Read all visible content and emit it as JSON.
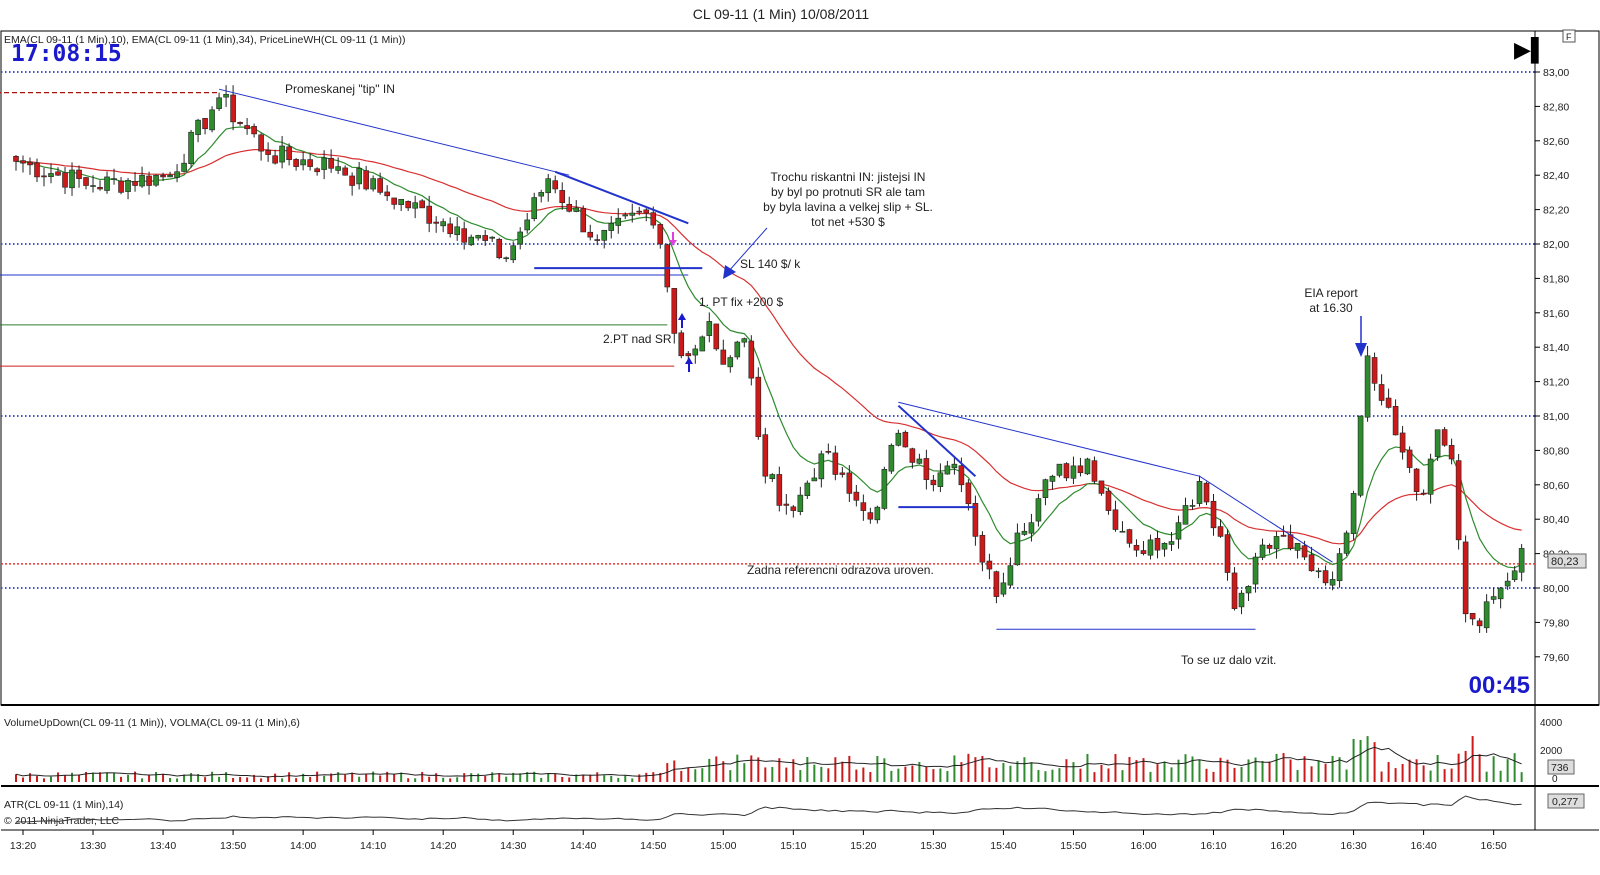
{
  "header": {
    "title": "CL 09-11 (1 Min)  10/08/2011",
    "indicator_label": "EMA(CL 09-11 (1 Min),10), EMA(CL 09-11 (1 Min),34), PriceLineWH(CL 09-11 (1 Min))",
    "clock": "17:08:15",
    "countdown": "00:45",
    "play_glyph": "▶▌",
    "f_button": "F"
  },
  "volume_panel": {
    "label": "VolumeUpDown(CL 09-11 (1 Min)), VOLMA(CL 09-11 (1 Min),6)",
    "current_value": "736"
  },
  "atr_panel": {
    "label": "ATR(CL 09-11 (1 Min),14)",
    "current_value": "0,277"
  },
  "copyright": "© 2011 NinjaTrader, LLC",
  "price_marker": "80,23",
  "colors": {
    "up_candle": "#2e8b2e",
    "down_candle": "#cc1a1a",
    "ema_fast": "#2e8b2e",
    "ema_slow": "#d83030",
    "trendline": "#2233cc",
    "price_line": "#e33",
    "blue_dots": "#3a55d6",
    "pink_arrow": "#e040e0",
    "clock_text": "#1a1acc"
  },
  "annotations": [
    {
      "id": "promeskanej",
      "text": "Promeskanej \"tip\" IN"
    },
    {
      "id": "riskantni",
      "lines": [
        "Trochu riskantni IN: jistejsi IN",
        "by byl po protnuti SR ale tam",
        "by byla lavina a velkej slip + SL.",
        "tot net +530 $"
      ]
    },
    {
      "id": "sl",
      "text": "SL 140 $/ k"
    },
    {
      "id": "pt1",
      "text": "1. PT fix +200 $"
    },
    {
      "id": "pt2",
      "text": "2.PT nad SR"
    },
    {
      "id": "eia",
      "lines": [
        "EIA report",
        "at 16.30"
      ]
    },
    {
      "id": "zadna",
      "text": "Zadna referencni odrazova uroven."
    },
    {
      "id": "tose",
      "text": "To se uz dalo vzit."
    }
  ],
  "chart_data": {
    "type": "candlestick",
    "title": "CL 09-11 (1 Min)  10/08/2011",
    "interval_minutes": 1,
    "x_ticks": [
      "13:20",
      "13:30",
      "13:40",
      "13:50",
      "14:00",
      "14:10",
      "14:20",
      "14:30",
      "14:40",
      "14:50",
      "15:00",
      "15:10",
      "15:20",
      "15:30",
      "15:40",
      "15:50",
      "16:00",
      "16:10",
      "16:20",
      "16:30",
      "16:40",
      "16:50"
    ],
    "y_ticks": [
      "83,00",
      "82,80",
      "82,60",
      "82,40",
      "82,20",
      "82,00",
      "81,80",
      "81,60",
      "81,40",
      "81,20",
      "81,00",
      "80,80",
      "80,60",
      "80,40",
      "80,20",
      "80,00",
      "79,80",
      "79,60"
    ],
    "ylim": [
      79.4,
      83.05
    ],
    "time_range": [
      "13:19",
      "16:54"
    ],
    "reference_levels": [
      {
        "price": 83.0,
        "style": "blue-dotted"
      },
      {
        "price": 82.0,
        "style": "blue-dotted"
      },
      {
        "price": 81.0,
        "style": "blue-dotted"
      },
      {
        "price": 80.0,
        "style": "blue-dotted"
      },
      {
        "price": 82.88,
        "style": "red-dashed",
        "from": "13:19",
        "to": "13:48"
      },
      {
        "price": 81.82,
        "style": "blue-solid",
        "from": "13:19",
        "to": "14:55"
      },
      {
        "price": 81.53,
        "style": "green-solid",
        "from": "13:19",
        "to": "14:52"
      },
      {
        "price": 81.29,
        "style": "red-solid",
        "from": "13:19",
        "to": "14:53"
      },
      {
        "price": 80.14,
        "style": "red-dotted"
      }
    ],
    "volume_ticks": [
      "4000",
      "2000",
      "0"
    ],
    "key_points": [
      {
        "time": "13:19",
        "price": 82.48
      },
      {
        "time": "13:30",
        "price": 82.34
      },
      {
        "time": "13:41",
        "price": 82.4
      },
      {
        "time": "13:48",
        "price": 82.85
      },
      {
        "time": "13:55",
        "price": 82.52
      },
      {
        "time": "14:05",
        "price": 82.45
      },
      {
        "time": "14:12",
        "price": 82.28
      },
      {
        "time": "14:22",
        "price": 82.1
      },
      {
        "time": "14:29",
        "price": 81.92
      },
      {
        "time": "14:35",
        "price": 82.38
      },
      {
        "time": "14:42",
        "price": 82.02
      },
      {
        "time": "14:49",
        "price": 82.18
      },
      {
        "time": "14:51",
        "price": 82.0
      },
      {
        "time": "14:53",
        "price": 81.48
      },
      {
        "time": "14:55",
        "price": 81.35
      },
      {
        "time": "14:58",
        "price": 81.55
      },
      {
        "time": "15:00",
        "price": 81.3
      },
      {
        "time": "15:03",
        "price": 81.45
      },
      {
        "time": "15:06",
        "price": 80.65
      },
      {
        "time": "15:10",
        "price": 80.45
      },
      {
        "time": "15:14",
        "price": 80.78
      },
      {
        "time": "15:18",
        "price": 80.55
      },
      {
        "time": "15:21",
        "price": 80.4
      },
      {
        "time": "15:25",
        "price": 80.9
      },
      {
        "time": "15:28",
        "price": 80.75
      },
      {
        "time": "15:30",
        "price": 80.6
      },
      {
        "time": "15:33",
        "price": 80.72
      },
      {
        "time": "15:36",
        "price": 80.3
      },
      {
        "time": "15:39",
        "price": 79.95
      },
      {
        "time": "15:42",
        "price": 80.32
      },
      {
        "time": "15:47",
        "price": 80.65
      },
      {
        "time": "15:52",
        "price": 80.75
      },
      {
        "time": "15:55",
        "price": 80.45
      },
      {
        "time": "16:00",
        "price": 80.2
      },
      {
        "time": "16:05",
        "price": 80.38
      },
      {
        "time": "16:08",
        "price": 80.62
      },
      {
        "time": "16:11",
        "price": 80.3
      },
      {
        "time": "16:13",
        "price": 79.88
      },
      {
        "time": "16:16",
        "price": 80.18
      },
      {
        "time": "16:20",
        "price": 80.3
      },
      {
        "time": "16:24",
        "price": 80.1
      },
      {
        "time": "16:27",
        "price": 80.05
      },
      {
        "time": "16:30",
        "price": 80.55
      },
      {
        "time": "16:32",
        "price": 81.35
      },
      {
        "time": "16:35",
        "price": 81.05
      },
      {
        "time": "16:38",
        "price": 80.7
      },
      {
        "time": "16:40",
        "price": 80.55
      },
      {
        "time": "16:42",
        "price": 80.92
      },
      {
        "time": "16:44",
        "price": 80.75
      },
      {
        "time": "16:46",
        "price": 79.85
      },
      {
        "time": "16:48",
        "price": 79.78
      },
      {
        "time": "16:50",
        "price": 79.95
      },
      {
        "time": "16:53",
        "price": 80.1
      },
      {
        "time": "16:54",
        "price": 80.23
      }
    ]
  }
}
